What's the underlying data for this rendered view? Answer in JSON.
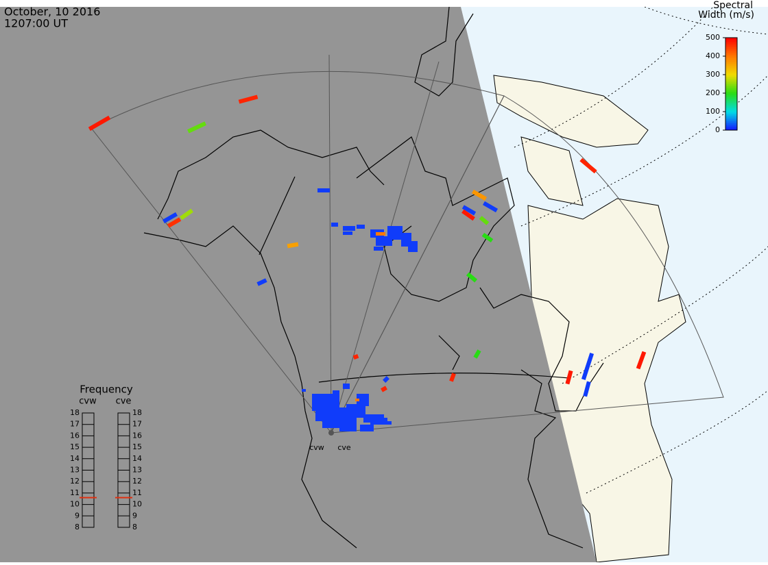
{
  "header": {
    "date": "October, 10 2016",
    "time": "1207:00 UT"
  },
  "colorbar": {
    "title": [
      "Spectral",
      "Width (m/s)"
    ],
    "lim": [
      0,
      500
    ],
    "ticks": [
      0,
      100,
      200,
      300,
      400,
      500
    ]
  },
  "frequency": {
    "title": "Frequency",
    "lim": [
      8,
      18
    ],
    "ticks": [
      8,
      9,
      10,
      11,
      12,
      13,
      14,
      15,
      16,
      17,
      18
    ],
    "radars": [
      {
        "name": "cvw",
        "value": 10.6
      },
      {
        "name": "cve",
        "value": 10.6
      }
    ]
  },
  "sites": [
    "cvw",
    "cve"
  ],
  "echoes": [
    480,
    470,
    230,
    20,
    260,
    460,
    20,
    360,
    20,
    470,
    370,
    20,
    20,
    480,
    230,
    200,
    200,
    470,
    470,
    200,
    480,
    20,
    20,
    480,
    20,
    470
  ],
  "clusters": [
    20,
    20,
    400
  ]
}
